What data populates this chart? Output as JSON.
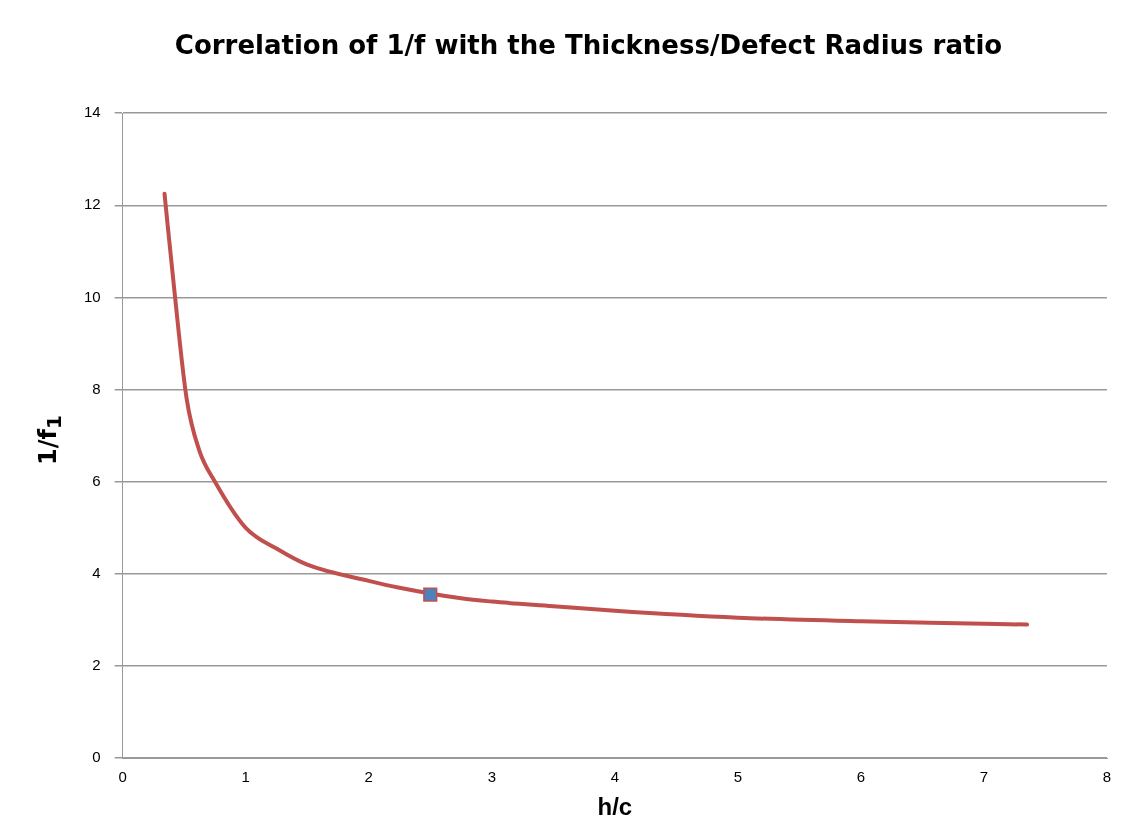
{
  "chart_data": {
    "type": "line",
    "title": "Correlation of 1/f with the Thickness/Defect Radius ratio",
    "xlabel": "h/c",
    "ylabel": "1/f$_{1}$",
    "series": [
      {
        "color": "#c0504d",
        "marker": "none",
        "x": [
          0.34,
          0.42,
          0.52,
          0.62,
          0.75,
          1,
          1.25,
          1.5,
          2,
          2.25,
          2.75,
          3,
          3.5,
          4,
          5,
          6,
          7,
          7.35
        ],
        "values": [
          12.25,
          10.15,
          7.8,
          6.7,
          6.0,
          5.0,
          4.55,
          4.2,
          3.85,
          3.7,
          3.47,
          3.4,
          3.3,
          3.2,
          3.05,
          2.97,
          2.92,
          2.9
        ]
      },
      {
        "type": "scatter",
        "color": "#4f81bd",
        "marker": "square",
        "x": [
          2.5
        ],
        "values": [
          3.55
        ]
      }
    ],
    "xlim": [
      0,
      8
    ],
    "xticks": [
      0,
      1,
      2,
      3,
      4,
      5,
      6,
      7,
      8
    ],
    "ylim": [
      0,
      14
    ],
    "yticks": [
      0,
      2,
      4,
      6,
      8,
      10,
      12,
      14
    ],
    "grid": "y",
    "legend": false
  }
}
